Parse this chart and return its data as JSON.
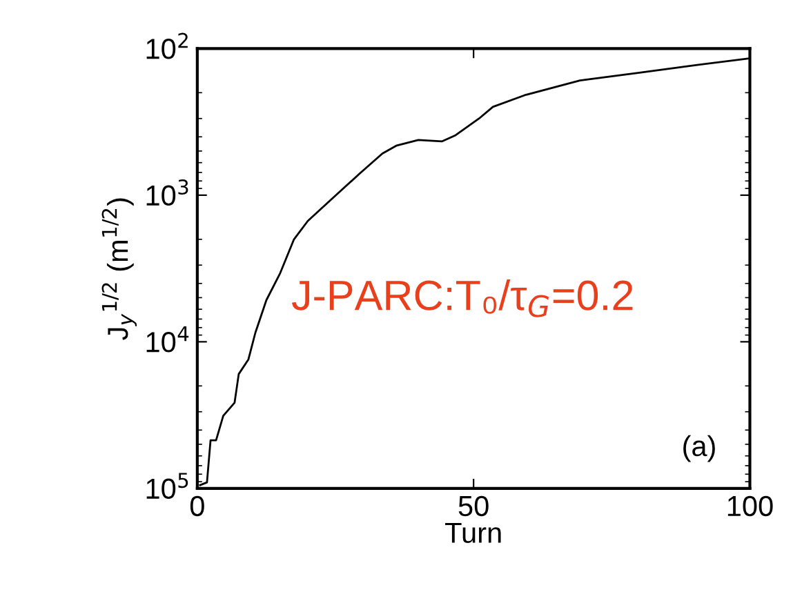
{
  "chart_data": {
    "type": "line",
    "xlabel": "Turn",
    "ylabel": "J$_{y}$$^{1/2}$ (m$^{1/2}$)",
    "annotations": [
      "J-PARC:T₀/τ$_{G}$=0.2",
      "(a)"
    ],
    "x": [
      0.5,
      1.75,
      2.4,
      3.4,
      4.7,
      6.75,
      7.5,
      9.25,
      10.5,
      12.5,
      15,
      17.5,
      20,
      24.25,
      29.25,
      33.5,
      36,
      40,
      44.25,
      46.75,
      51,
      53.5,
      59.25,
      69.25,
      80,
      90,
      99.75
    ],
    "series": [
      {
        "color": "#000000",
        "values": [
          95000,
          91000,
          47000,
          47000,
          32000,
          26000,
          16600,
          13200,
          8700,
          5200,
          3400,
          2000,
          1500,
          1070,
          720,
          520,
          460,
          420,
          430,
          390,
          300,
          250,
          208,
          165,
          146,
          130,
          117
        ]
      }
    ],
    "log": "y",
    "xlim": [
      0,
      100
    ],
    "ylim": [
      100000,
      100
    ],
    "xticks": [
      0,
      50,
      100
    ],
    "yticks": [
      {
        "value": 100000,
        "label": "10$^{5}$"
      },
      {
        "value": 10000,
        "label": "10$^{4}$"
      },
      {
        "value": 1000,
        "label": "10$^{3}$"
      },
      {
        "value": 100,
        "label": "10$^{2}$"
      }
    ],
    "grid": false,
    "legend": false,
    "marker": "none",
    "line_style": "solid"
  }
}
